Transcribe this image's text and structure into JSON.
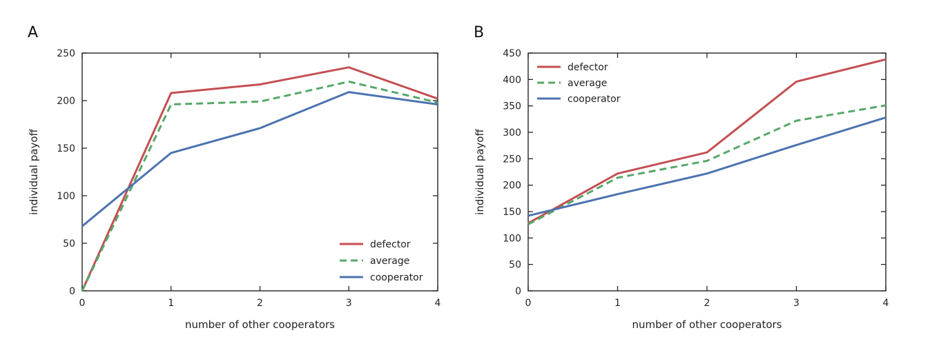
{
  "chart_data": [
    {
      "type": "line",
      "panel_label": "A",
      "xlabel": "number of other cooperators",
      "ylabel": "individual payoff",
      "x": [
        0,
        1,
        2,
        3,
        4
      ],
      "xticks": [
        0,
        1,
        2,
        3,
        4
      ],
      "xlim": [
        0,
        4
      ],
      "ylim": [
        0,
        250
      ],
      "yticks": [
        0,
        50,
        100,
        150,
        200,
        250
      ],
      "legend_position": "bottom-right",
      "series": [
        {
          "name": "defector",
          "values": [
            0,
            208,
            217,
            235,
            202
          ],
          "color": "#c44e52",
          "style": "solid"
        },
        {
          "name": "average",
          "values": [
            0,
            196,
            199,
            220,
            198
          ],
          "color": "#55a868",
          "style": "dashed"
        },
        {
          "name": "cooperator",
          "values": [
            68,
            145,
            171,
            209,
            196
          ],
          "color": "#4c72b0",
          "style": "solid"
        }
      ]
    },
    {
      "type": "line",
      "panel_label": "B",
      "xlabel": "number of other cooperators",
      "ylabel": "individual payoff",
      "x": [
        0,
        1,
        2,
        3,
        4
      ],
      "xticks": [
        0,
        1,
        2,
        3,
        4
      ],
      "xlim": [
        0,
        4
      ],
      "ylim": [
        0,
        450
      ],
      "yticks": [
        0,
        50,
        100,
        150,
        200,
        250,
        300,
        350,
        400,
        450
      ],
      "legend_position": "top-left",
      "series": [
        {
          "name": "defector",
          "values": [
            128,
            222,
            262,
            396,
            438
          ],
          "color": "#c44e52",
          "style": "solid"
        },
        {
          "name": "average",
          "values": [
            126,
            214,
            246,
            322,
            351
          ],
          "color": "#55a868",
          "style": "dashed"
        },
        {
          "name": "cooperator",
          "values": [
            142,
            183,
            222,
            276,
            328
          ],
          "color": "#4c72b0",
          "style": "solid"
        }
      ]
    }
  ]
}
